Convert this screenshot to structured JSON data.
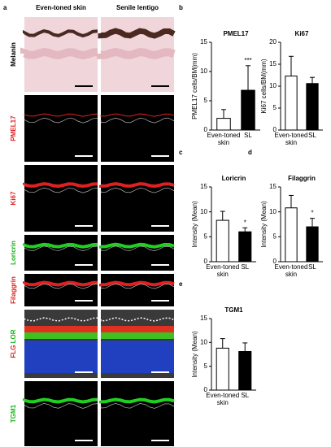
{
  "panel_a": {
    "label": "a",
    "columns": [
      "Even-toned skin",
      "Senile lentigo"
    ],
    "rows": [
      [
        "Melanin"
      ],
      [
        "PMEL17"
      ],
      [
        "Ki67"
      ],
      [
        "Loricrin"
      ],
      [
        "Filaggrin"
      ],
      [
        "FLG",
        "LOR"
      ],
      [
        "TGM1"
      ]
    ],
    "row_colors": [
      [
        "#000000"
      ],
      [
        "#e02020"
      ],
      [
        "#e02020"
      ],
      [
        "#18b418"
      ],
      [
        "#e02020"
      ],
      [
        "#e02020",
        "#18b418"
      ],
      [
        "#18b418"
      ]
    ]
  },
  "chart_data": [
    {
      "type": "bar",
      "panel": "b",
      "title": "PMEL17",
      "y_label": "PMEL17 cells/BM(mm)",
      "categories": [
        "Even-toned skin",
        "SL"
      ],
      "values": [
        2.0,
        6.8
      ],
      "errors": [
        1.5,
        4.2
      ],
      "colors": [
        "#ffffff",
        "#000000"
      ],
      "significance": [
        null,
        "***"
      ],
      "ylim": [
        0,
        15
      ],
      "yticks": [
        0,
        5,
        10,
        15
      ]
    },
    {
      "type": "bar",
      "title": "Ki67",
      "y_label": "Ki67 cells/BM(mm)",
      "categories": [
        "Even-toned skin",
        "SL"
      ],
      "values": [
        12.3,
        10.6
      ],
      "errors": [
        4.5,
        1.4
      ],
      "colors": [
        "#ffffff",
        "#000000"
      ],
      "ylim": [
        0,
        20
      ],
      "yticks": [
        0,
        5,
        10,
        15,
        20
      ]
    },
    {
      "type": "bar",
      "panel": "c",
      "title": "Loricrin",
      "y_label": "Intensity (Mean)",
      "categories": [
        "Even-toned skin",
        "SL"
      ],
      "values": [
        8.3,
        6.0
      ],
      "errors": [
        1.8,
        0.8
      ],
      "colors": [
        "#ffffff",
        "#000000"
      ],
      "significance": [
        null,
        "*"
      ],
      "ylim": [
        0,
        15
      ],
      "yticks": [
        0,
        5,
        10,
        15
      ]
    },
    {
      "type": "bar",
      "panel": "d",
      "title": "Filaggrin",
      "y_label": "Intensity (Mean)",
      "categories": [
        "Even-toned skin",
        "SL"
      ],
      "values": [
        10.8,
        7.0
      ],
      "errors": [
        2.5,
        1.7
      ],
      "colors": [
        "#ffffff",
        "#000000"
      ],
      "significance": [
        null,
        "*"
      ],
      "ylim": [
        0,
        15
      ],
      "yticks": [
        0,
        5,
        10,
        15
      ]
    },
    {
      "type": "bar",
      "panel": "e",
      "title": "TGM1",
      "y_label": "Intensity (Mean)",
      "categories": [
        "Even-toned skin",
        "SL"
      ],
      "values": [
        8.8,
        8.1
      ],
      "errors": [
        2.0,
        1.8
      ],
      "colors": [
        "#ffffff",
        "#000000"
      ],
      "ylim": [
        0,
        15
      ],
      "yticks": [
        0,
        5,
        10,
        15
      ]
    }
  ]
}
